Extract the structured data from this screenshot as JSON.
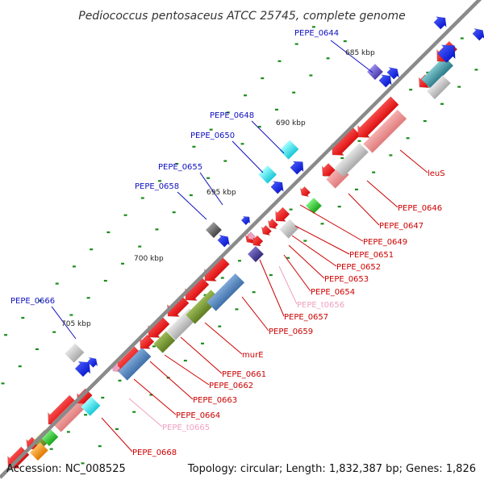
{
  "title": "Pediococcus pentosaceus ATCC 25745, complete genome",
  "footer": {
    "accession": "Accession: NC_008525",
    "summary": "Topology: circular; Length: 1,832,387 bp; Genes: 1,826"
  },
  "colors": {
    "backbone": "#808080",
    "tick": "#1a8c1a",
    "forward_label": "#1010c0",
    "reverse_label": "#cc0000",
    "trna_label": "#f0a0c0"
  },
  "kbp_marks": [
    {
      "id": "kbp-685",
      "text": "685 kbp"
    },
    {
      "id": "kbp-690",
      "text": "690 kbp"
    },
    {
      "id": "kbp-695",
      "text": "695 kbp"
    },
    {
      "id": "kbp-700",
      "text": "700 kbp"
    },
    {
      "id": "kbp-705",
      "text": "705 kbp"
    }
  ],
  "forward_labels": [
    {
      "id": "PEPE_0644",
      "text": "PEPE_0644"
    },
    {
      "id": "PEPE_0648",
      "text": "PEPE_0648"
    },
    {
      "id": "PEPE_0650",
      "text": "PEPE_0650"
    },
    {
      "id": "PEPE_0655",
      "text": "PEPE_0655"
    },
    {
      "id": "PEPE_0658",
      "text": "PEPE_0658"
    },
    {
      "id": "PEPE_0666",
      "text": "PEPE_0666"
    }
  ],
  "reverse_labels": [
    {
      "id": "leuS",
      "text": "leuS",
      "kind": "gene"
    },
    {
      "id": "PEPE_0646",
      "text": "PEPE_0646",
      "kind": "gene"
    },
    {
      "id": "PEPE_0647",
      "text": "PEPE_0647",
      "kind": "gene"
    },
    {
      "id": "PEPE_0649",
      "text": "PEPE_0649",
      "kind": "gene"
    },
    {
      "id": "PEPE_0651",
      "text": "PEPE_0651",
      "kind": "gene"
    },
    {
      "id": "PEPE_0652",
      "text": "PEPE_0652",
      "kind": "gene"
    },
    {
      "id": "PEPE_0653",
      "text": "PEPE_0653",
      "kind": "gene"
    },
    {
      "id": "PEPE_0654",
      "text": "PEPE_0654",
      "kind": "gene"
    },
    {
      "id": "PEPE_t0656",
      "text": "PEPE_t0656",
      "kind": "trna"
    },
    {
      "id": "PEPE_0657",
      "text": "PEPE_0657",
      "kind": "gene"
    },
    {
      "id": "PEPE_0659",
      "text": "PEPE_0659",
      "kind": "gene"
    },
    {
      "id": "murE",
      "text": "murE",
      "kind": "gene"
    },
    {
      "id": "PEPE_0661",
      "text": "PEPE_0661",
      "kind": "gene"
    },
    {
      "id": "PEPE_0662",
      "text": "PEPE_0662",
      "kind": "gene"
    },
    {
      "id": "PEPE_0663",
      "text": "PEPE_0663",
      "kind": "gene"
    },
    {
      "id": "PEPE_0664",
      "text": "PEPE_0664",
      "kind": "gene"
    },
    {
      "id": "PEPE_t0665",
      "text": "PEPE_t0665",
      "kind": "trna"
    },
    {
      "id": "PEPE_0668",
      "text": "PEPE_0668",
      "kind": "gene"
    }
  ]
}
